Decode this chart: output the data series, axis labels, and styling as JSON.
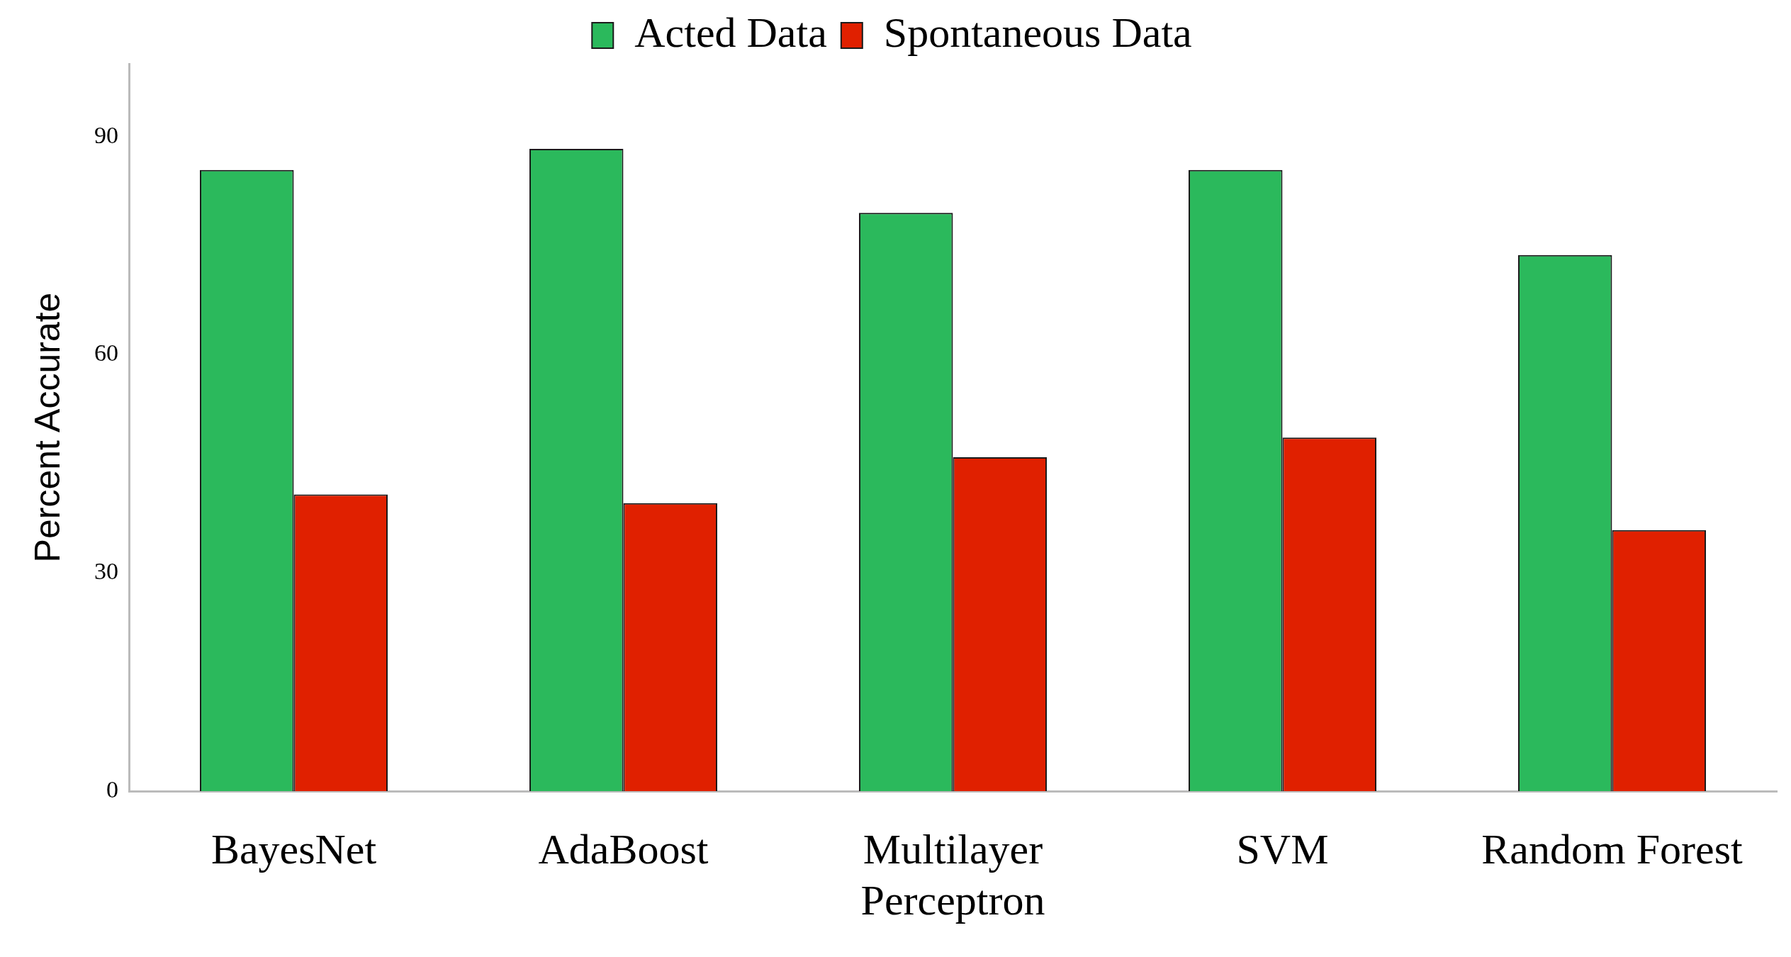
{
  "chart_data": {
    "type": "bar",
    "ylabel": "Percent Accurate",
    "categories": [
      "BayesNet",
      "AdaBoost",
      "Multilayer Perceptron",
      "SVM",
      "Random Forest"
    ],
    "series": [
      {
        "name": "Acted Data",
        "color": "#2bb95c",
        "values": [
          85.4,
          88.3,
          79.5,
          85.4,
          73.7
        ]
      },
      {
        "name": "Spontaneous Data",
        "color": "#e02000",
        "values": [
          40.8,
          39.6,
          45.9,
          48.6,
          35.9
        ]
      }
    ],
    "ylim": [
      0,
      100
    ],
    "yticks": [
      0,
      30,
      60,
      90
    ],
    "grid": false,
    "legend": "top"
  }
}
